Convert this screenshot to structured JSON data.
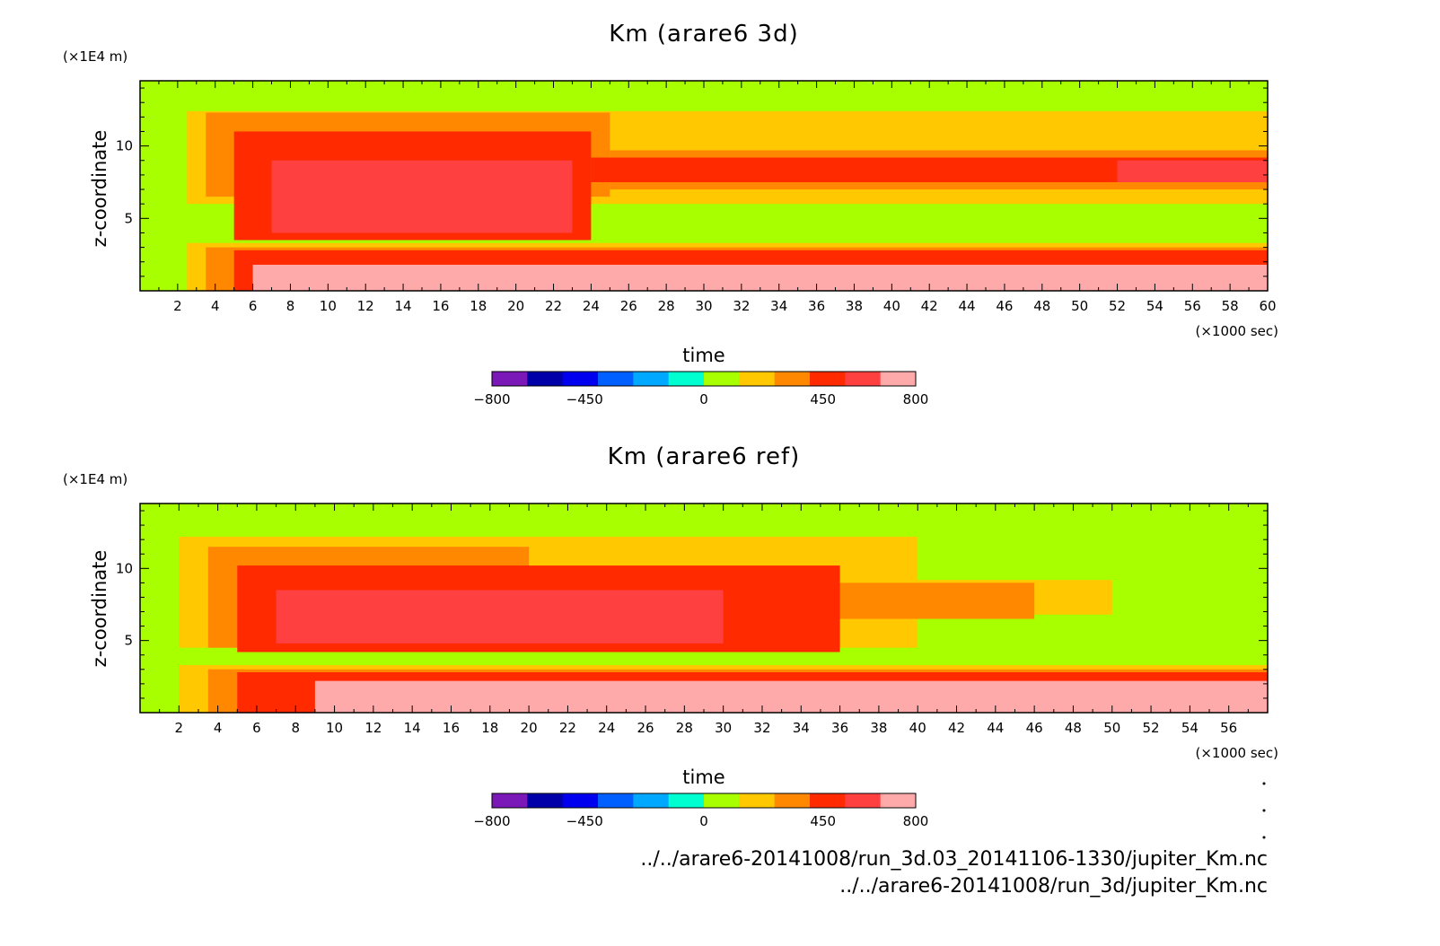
{
  "chart_data": [
    {
      "type": "heatmap",
      "title": "Km (arare6 3d)",
      "xlabel": "time",
      "ylabel": "z-coordinate",
      "x_unit": "(×1000 sec)",
      "y_unit": "(×1E4 m)",
      "xlim": [
        0,
        60
      ],
      "ylim": [
        0,
        14.5
      ],
      "x_ticks": [
        2,
        4,
        6,
        8,
        10,
        12,
        14,
        16,
        18,
        20,
        22,
        24,
        26,
        28,
        30,
        32,
        34,
        36,
        38,
        40,
        42,
        44,
        46,
        48,
        50,
        52,
        54,
        56,
        58,
        60
      ],
      "y_ticks": [
        5,
        10
      ],
      "regions": [
        {
          "level": 0,
          "x": [
            0,
            60
          ],
          "y": [
            0,
            14.5
          ]
        },
        {
          "level": 1,
          "x": [
            2.5,
            60
          ],
          "y": [
            0,
            3.3
          ]
        },
        {
          "level": 1,
          "x": [
            2.5,
            60
          ],
          "y": [
            6.0,
            12.4
          ]
        },
        {
          "level": 2,
          "x": [
            3.5,
            60
          ],
          "y": [
            0,
            3.0
          ]
        },
        {
          "level": 2,
          "x": [
            3.5,
            25
          ],
          "y": [
            6.5,
            12.3
          ]
        },
        {
          "level": 2,
          "x": [
            25,
            60
          ],
          "y": [
            7.0,
            9.7
          ]
        },
        {
          "level": 3,
          "x": [
            5,
            60
          ],
          "y": [
            0,
            2.8
          ]
        },
        {
          "level": 3,
          "x": [
            5,
            24
          ],
          "y": [
            3.5,
            11.0
          ]
        },
        {
          "level": 3,
          "x": [
            24,
            60
          ],
          "y": [
            7.5,
            9.2
          ]
        },
        {
          "level": 4,
          "x": [
            7,
            23
          ],
          "y": [
            4.0,
            9.0
          ]
        },
        {
          "level": 4,
          "x": [
            52,
            60
          ],
          "y": [
            7.5,
            9.0
          ]
        },
        {
          "level": 5,
          "x": [
            6,
            60
          ],
          "y": [
            0,
            1.8
          ]
        }
      ]
    },
    {
      "type": "heatmap",
      "title": "Km (arare6 ref)",
      "xlabel": "time",
      "ylabel": "z-coordinate",
      "x_unit": "(×1000 sec)",
      "y_unit": "(×1E4 m)",
      "xlim": [
        0,
        58
      ],
      "ylim": [
        0,
        14.5
      ],
      "x_ticks": [
        2,
        4,
        6,
        8,
        10,
        12,
        14,
        16,
        18,
        20,
        22,
        24,
        26,
        28,
        30,
        32,
        34,
        36,
        38,
        40,
        42,
        44,
        46,
        48,
        50,
        52,
        54,
        56
      ],
      "y_ticks": [
        5,
        10
      ],
      "regions": [
        {
          "level": 0,
          "x": [
            0,
            58
          ],
          "y": [
            0,
            14.5
          ]
        },
        {
          "level": 1,
          "x": [
            2,
            58
          ],
          "y": [
            0,
            3.3
          ]
        },
        {
          "level": 1,
          "x": [
            2,
            40
          ],
          "y": [
            4.5,
            12.2
          ]
        },
        {
          "level": 1,
          "x": [
            40,
            50
          ],
          "y": [
            6.8,
            9.2
          ]
        },
        {
          "level": 2,
          "x": [
            3.5,
            58
          ],
          "y": [
            0,
            3.0
          ]
        },
        {
          "level": 2,
          "x": [
            3.5,
            20
          ],
          "y": [
            4.5,
            11.5
          ]
        },
        {
          "level": 2,
          "x": [
            20,
            46
          ],
          "y": [
            6.5,
            9.0
          ]
        },
        {
          "level": 3,
          "x": [
            5,
            58
          ],
          "y": [
            0,
            2.8
          ]
        },
        {
          "level": 3,
          "x": [
            5,
            36
          ],
          "y": [
            4.2,
            10.2
          ]
        },
        {
          "level": 4,
          "x": [
            7,
            30
          ],
          "y": [
            4.8,
            8.5
          ]
        },
        {
          "level": 5,
          "x": [
            9,
            58
          ],
          "y": [
            0,
            2.2
          ]
        }
      ]
    }
  ],
  "colorbar": {
    "tick_labels": [
      "−800",
      "−450",
      "0",
      "450",
      "800"
    ],
    "tick_values": [
      -800,
      -450,
      0,
      450,
      800
    ],
    "colors": [
      "#7b18b8",
      "#0000a8",
      "#0000ee",
      "#0060ff",
      "#00a8ff",
      "#00ffd0",
      "#a8ff00",
      "#ffc800",
      "#ff8800",
      "#ff2a00",
      "#ff4040",
      "#ffaaaa"
    ]
  },
  "level_colors": [
    "#a8ff00",
    "#ffc800",
    "#ff8800",
    "#ff2a00",
    "#ff4040",
    "#ffaaaa"
  ],
  "files": [
    "../../arare6-20141008/run_3d.03_20141106-1330/jupiter_Km.nc",
    "../../arare6-20141008/run_3d/jupiter_Km.nc"
  ]
}
